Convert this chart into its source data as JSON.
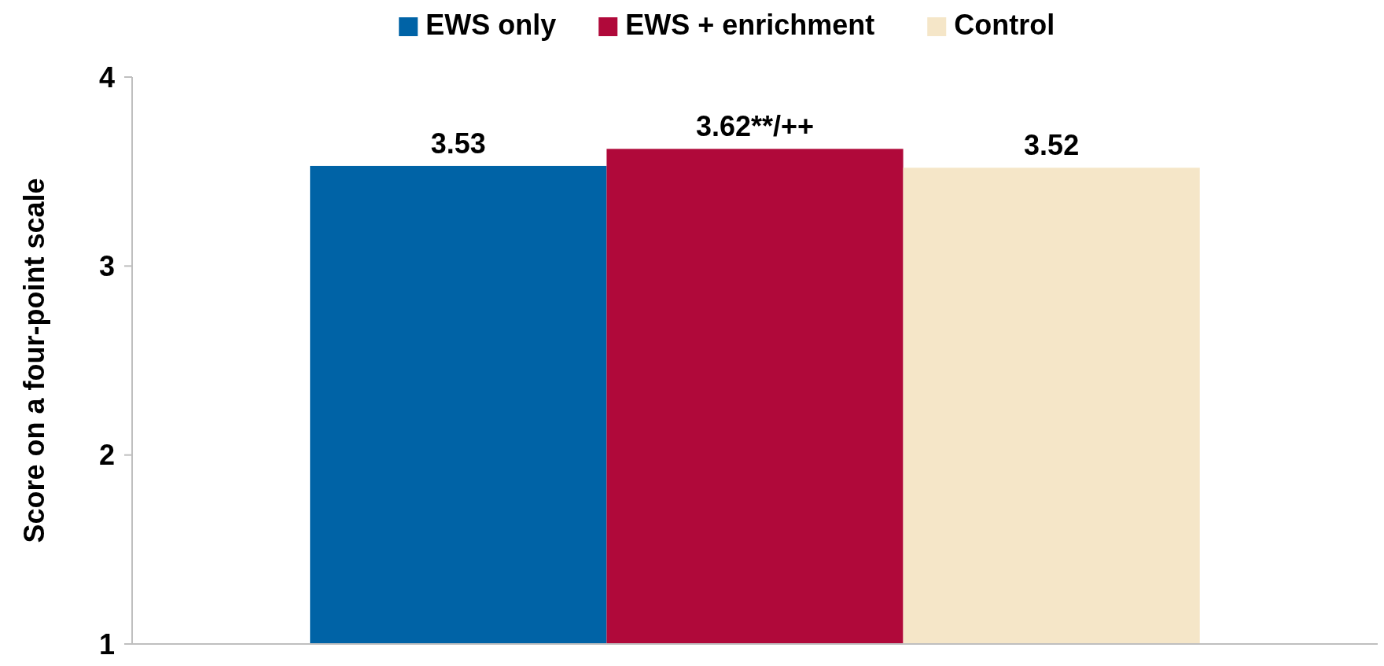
{
  "chart_data": {
    "type": "bar",
    "ylabel": "Score on a four-point scale",
    "categories": [
      null
    ],
    "series": [
      {
        "name": "EWS only",
        "color": "#0063a6",
        "values": [
          3.53
        ],
        "value_labels": [
          "3.53"
        ]
      },
      {
        "name": "EWS + enrichment",
        "color": "#b0093a",
        "values": [
          3.62
        ],
        "value_labels": [
          "3.62**/++"
        ]
      },
      {
        "name": "Control",
        "color": "#f5e6c8",
        "values": [
          3.52
        ],
        "value_labels": [
          "3.52"
        ]
      }
    ],
    "ylim": [
      1,
      4
    ],
    "yticks": [
      1,
      2,
      3,
      4
    ],
    "grid": false,
    "legend": "top"
  }
}
